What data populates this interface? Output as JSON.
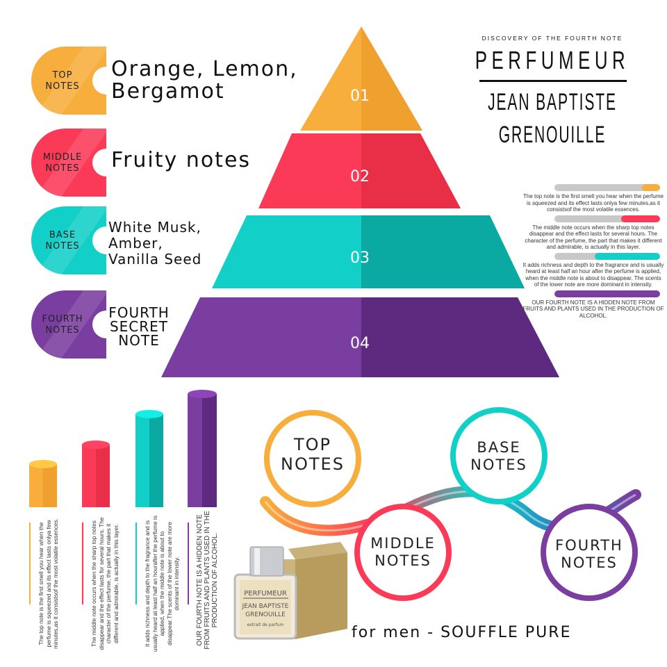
{
  "header": {
    "kicker": "DISCOVERY OF THE FOURTH NOTE",
    "brand": "PERFUMEUR",
    "name_line1": "JEAN BAPTISTE",
    "name_line2": "GRENOUILLE"
  },
  "tiers": [
    {
      "tab": "TOP\nNOTES",
      "notes": "Orange, Lemon,\nBergamot",
      "number": "01",
      "color": "#f8ae3c",
      "dark": "#f0a02e"
    },
    {
      "tab": "MIDDLE\nNOTES",
      "notes": "Fruity notes",
      "number": "02",
      "color": "#fb3a58",
      "dark": "#e92e48"
    },
    {
      "tab": "BASE\nNOTES",
      "notes": "White Musk,\nAmber,\nVanilla Seed",
      "number": "03",
      "color": "#12cfc8",
      "dark": "#0aa9a2"
    },
    {
      "tab": "FOURTH\nNOTES",
      "notes": "FOURTH\nSECRET\nNOTE",
      "number": "04",
      "color": "#7a3da0",
      "dark": "#5e2a80"
    }
  ],
  "side_descriptions": [
    {
      "text": "The top note is the first smell you hear when the perfume is squeezed and its effect lasts onlya few minutes,as it consistsof the most volatile essences.",
      "level": 0.17
    },
    {
      "text": "The middle note occurs when the sharp top notes disappear and the effect lasts for several hours. The character of the perfume, the part that makes it different and admirable, is actually in this layer.",
      "level": 0.37
    },
    {
      "text": "It adds richness and depth to the fragrance and is usually heard at least half an hour after the perfume is applied, when the middle note is about to disappear. The scents of the lower note are more dominant in intensity.",
      "level": 0.62
    },
    {
      "text": "OUR FOURTH NOTE IS A HIDDEN NOTE FROM FRUITS AND PLANTS USED IN THE PRODUCTION OF ALCOHOL.",
      "level": 1.0
    }
  ],
  "bottom_descriptions": [
    "The top note is the first smell you hear when the perfume is squeezed and its effect lasts onlya few minutes,as it consistsof the most volatile essences.",
    "The middle note occurs when the sharp top notes disappear and the effect lasts for several hours. The character of the perfume, the part that makes it different and admirable, is actually in this layer.",
    "It adds richness and depth to the fragrance and is usually heard at least half an hourafter the perfume is applied, when the middle note is about to disappear.The scents of the lower note are more dominant in intensity.",
    "OUR FOURTH NOTE IS A HIDDEN NOTE FROM FRUITS AND PLANTS USED IN THE PRODUCTION OF ALCOHOL."
  ],
  "circles": [
    "TOP\nNOTES",
    "MIDDLE\nNOTES",
    "BASE\nNOTES",
    "FOURTH\nNOTES"
  ],
  "product": {
    "logo_text": "PERFUMEUR JEAN BAPTISTE GRENOUILLE extrait de parfum"
  },
  "tagline": "for men - SOUFFLE PURE"
}
